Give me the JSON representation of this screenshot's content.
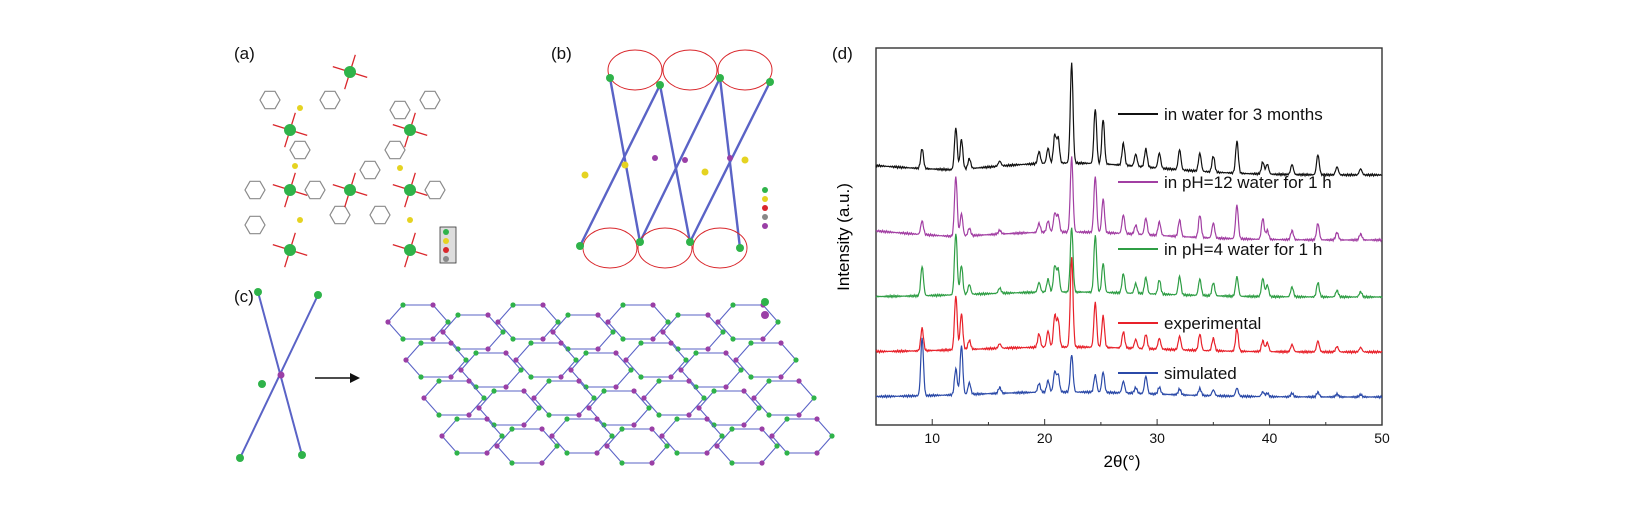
{
  "panels": {
    "a": "(a)",
    "b": "(b)",
    "c": "(c)",
    "d": "(d)"
  },
  "colors": {
    "bond_gray": "#8a8a8a",
    "oxygen_red": "#d9262b",
    "sulfur_yellow": "#e5d321",
    "metal_green": "#2fb34a",
    "linker_purple": "#9a3fa6",
    "net_blue": "#5a63c6"
  },
  "chart_data": {
    "type": "line",
    "xlabel": "2θ(°)",
    "ylabel": "Intensity (a.u.)",
    "xlim": [
      5,
      50
    ],
    "xticks": [
      10,
      20,
      30,
      40,
      50
    ],
    "y_ticks_shown": false,
    "legend_placement": "inline-right",
    "peaks_2theta": [
      9.1,
      12.1,
      12.6,
      13.3,
      16.0,
      19.5,
      20.3,
      20.9,
      21.2,
      22.4,
      24.5,
      25.2,
      27.0,
      28.1,
      29.0,
      30.2,
      32.0,
      33.8,
      35.0,
      37.1,
      39.4,
      39.8,
      42.0,
      44.3,
      46.0,
      48.1
    ],
    "series": [
      {
        "name": "in water for 3 months",
        "color": "#111111",
        "peak_heights": [
          0.2,
          0.42,
          0.3,
          0.1,
          0.05,
          0.12,
          0.15,
          0.28,
          0.25,
          1.0,
          0.55,
          0.45,
          0.22,
          0.12,
          0.18,
          0.15,
          0.2,
          0.18,
          0.16,
          0.32,
          0.12,
          0.1,
          0.1,
          0.2,
          0.08,
          0.06
        ]
      },
      {
        "name": "in pH=12 water for 1 h",
        "color": "#a23fa3",
        "peak_heights": [
          0.18,
          0.8,
          0.3,
          0.1,
          0.05,
          0.12,
          0.15,
          0.25,
          0.22,
          1.0,
          0.75,
          0.45,
          0.25,
          0.12,
          0.22,
          0.18,
          0.22,
          0.3,
          0.2,
          0.45,
          0.28,
          0.12,
          0.12,
          0.22,
          0.1,
          0.08
        ]
      },
      {
        "name": "in pH=4 water for 1 h",
        "color": "#2f9e45",
        "peak_heights": [
          0.45,
          0.95,
          0.45,
          0.15,
          0.08,
          0.15,
          0.2,
          0.4,
          0.35,
          1.0,
          0.88,
          0.45,
          0.3,
          0.15,
          0.25,
          0.22,
          0.28,
          0.25,
          0.2,
          0.3,
          0.28,
          0.18,
          0.15,
          0.22,
          0.1,
          0.08
        ]
      },
      {
        "name": "experimental",
        "color": "#e8212a",
        "peak_heights": [
          0.25,
          0.6,
          0.4,
          0.1,
          0.05,
          0.15,
          0.18,
          0.35,
          0.3,
          1.0,
          0.5,
          0.35,
          0.18,
          0.1,
          0.16,
          0.12,
          0.15,
          0.18,
          0.14,
          0.25,
          0.12,
          0.1,
          0.08,
          0.12,
          0.06,
          0.05
        ]
      },
      {
        "name": "simulated",
        "color": "#2b4aa8",
        "peak_heights": [
          1.0,
          0.45,
          0.85,
          0.2,
          0.1,
          0.15,
          0.2,
          0.35,
          0.3,
          0.65,
          0.3,
          0.35,
          0.2,
          0.1,
          0.3,
          0.12,
          0.1,
          0.12,
          0.1,
          0.14,
          0.08,
          0.06,
          0.06,
          0.08,
          0.05,
          0.04
        ]
      }
    ]
  }
}
